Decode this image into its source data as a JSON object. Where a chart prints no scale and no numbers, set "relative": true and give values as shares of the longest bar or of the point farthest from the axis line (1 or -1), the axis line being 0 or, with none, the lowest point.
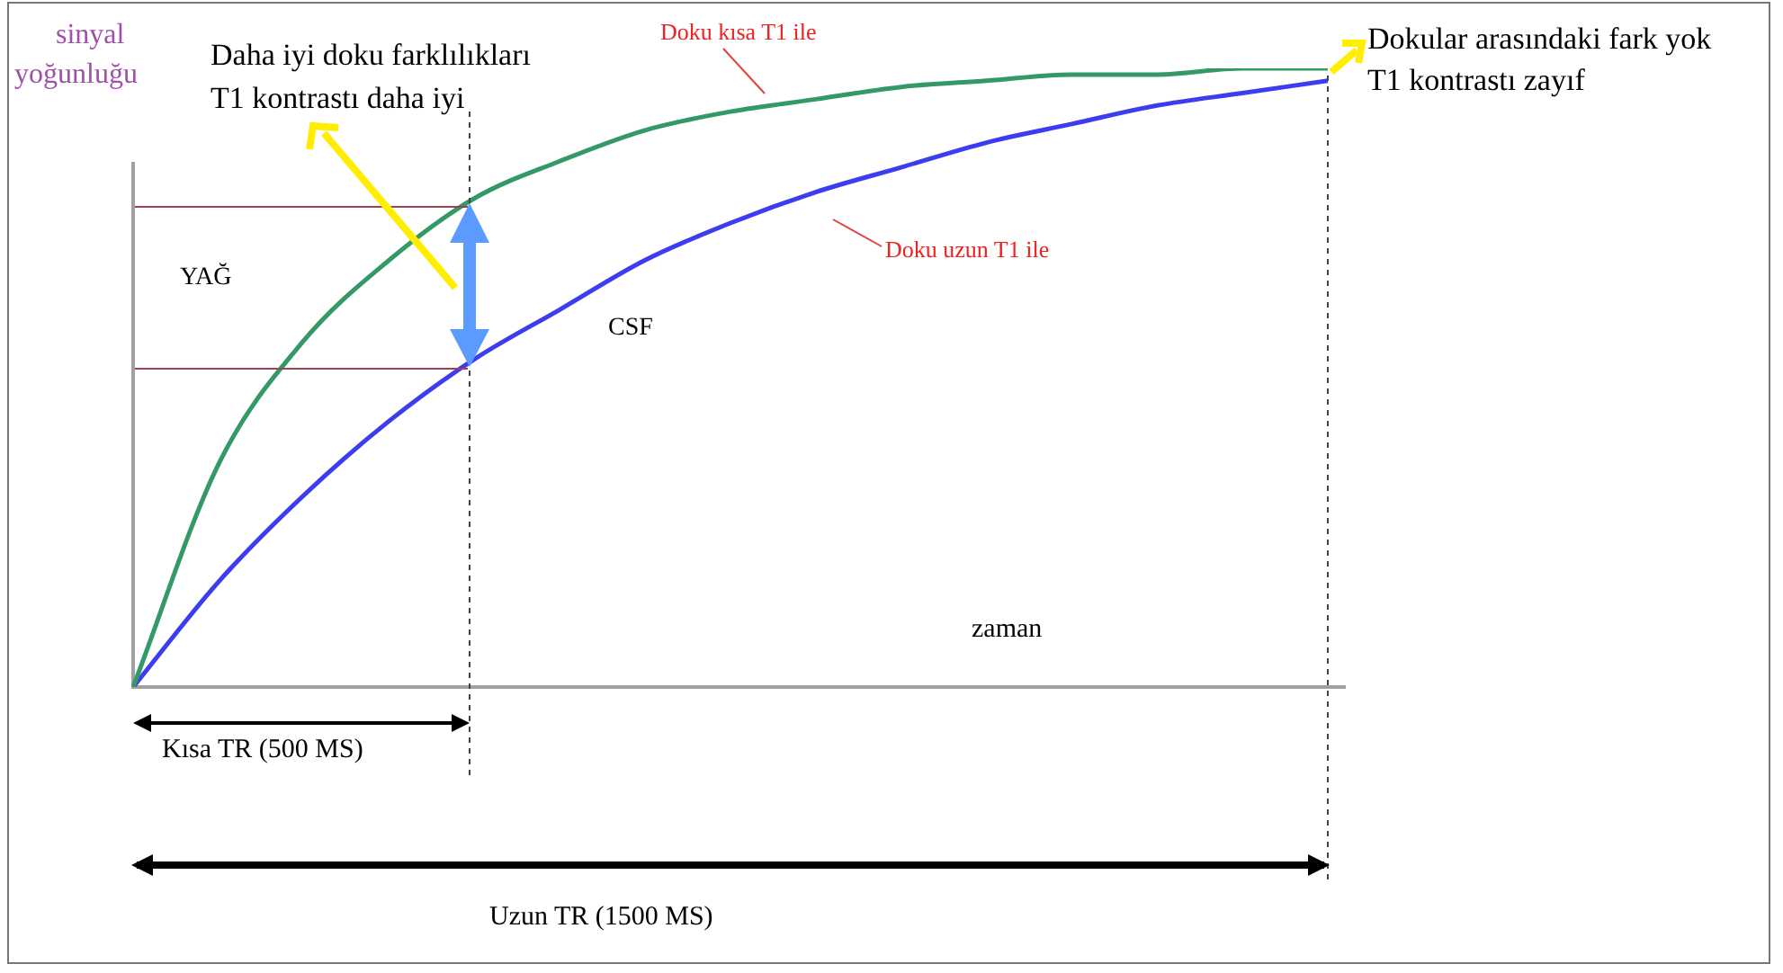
{
  "chart_data": {
    "type": "line",
    "relative": true,
    "ylabel": "sinyal yoğunluğu",
    "xlabel": "zaman",
    "categories": [
      null,
      null,
      null,
      null,
      null,
      null,
      null,
      null,
      null,
      null,
      null,
      null,
      null,
      null,
      null
    ],
    "series": [
      {
        "name": "Doku kısa T1 ile",
        "color": "#339966",
        "values": [
          0,
          0.36,
          0.56,
          0.69,
          0.79,
          0.85,
          0.9,
          0.93,
          0.95,
          0.97,
          0.98,
          0.99,
          0.99,
          1,
          1
        ]
      },
      {
        "name": "Doku uzun T1 ile",
        "color": "#3c3cf0",
        "values": [
          0,
          0.17,
          0.31,
          0.43,
          0.53,
          0.61,
          0.69,
          0.75,
          0.8,
          0.84,
          0.88,
          0.91,
          0.94,
          0.96,
          0.98
        ]
      }
    ],
    "annotations": [
      "Daha iyi doku farklılıkları",
      "T1 kontrastı daha iyi",
      "Dokular arasındaki fark yok",
      "T1 kontrastı zayıf",
      "YAĞ",
      "CSF",
      "Kısa TR (500 MS)",
      "Uzun TR (1500 MS)"
    ],
    "marker": "none",
    "legend": false,
    "tick_labels": false
  }
}
